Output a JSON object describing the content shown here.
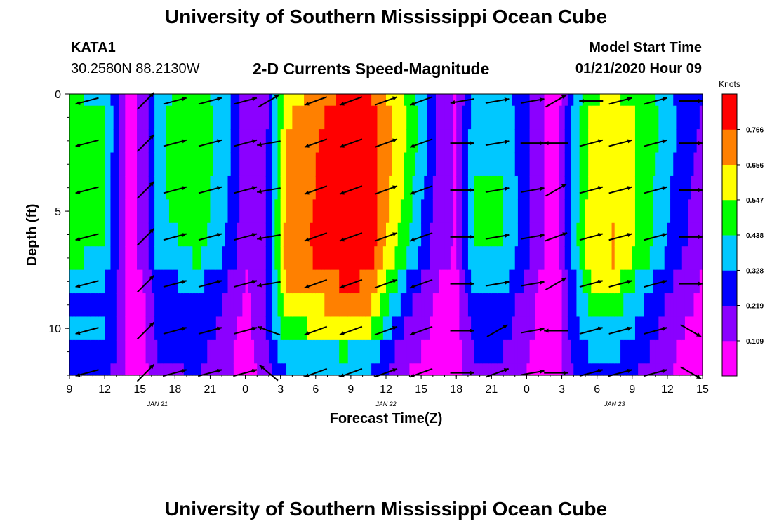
{
  "page": {
    "top_title": "University of Southern Mississippi Ocean Cube",
    "bottom_title": "University of Southern Mississippi Ocean Cube",
    "station_id": "KATA1",
    "station_coords": "30.2580N 88.2130W",
    "product_title": "2-D Currents Speed-Magnitude",
    "model_start_label": "Model Start Time",
    "model_start_value": "01/21/2020 Hour 09"
  },
  "chart_data": {
    "type": "heatmap",
    "title": "2-D Currents Speed-Magnitude",
    "xlabel": "Forecast Time(Z)",
    "ylabel": "Depth (ft)",
    "x_hours_range": [
      0,
      54
    ],
    "ylim": [
      0,
      12
    ],
    "y_inverted": true,
    "x_tick_labels": [
      "9",
      "12",
      "15",
      "18",
      "21",
      "0",
      "3",
      "6",
      "9",
      "12",
      "15",
      "18",
      "21",
      "0",
      "3",
      "6",
      "9",
      "12",
      "15"
    ],
    "y_tick_labels": [
      "0",
      "5",
      "10"
    ],
    "date_labels": [
      {
        "label": "JAN 21",
        "hour": 7.5
      },
      {
        "label": "JAN 22",
        "hour": 27
      },
      {
        "label": "JAN 23",
        "hour": 46.5
      }
    ],
    "colorbar": {
      "label": "Knots",
      "ticks": [
        0.109,
        0.219,
        0.328,
        0.438,
        0.547,
        0.656,
        0.766
      ],
      "range": [
        0.0,
        0.876
      ],
      "colors": [
        "#ff00ff",
        "#8b00ff",
        "#0000ff",
        "#00c8ff",
        "#00ff00",
        "#ffff00",
        "#ff8000",
        "#ff0000"
      ]
    },
    "depth_levels": [
      0,
      0.5,
      1.5,
      2.5,
      3.5,
      4.5,
      5.5,
      6.5,
      7.5,
      8.5,
      9.5,
      10.5,
      11.5,
      12
    ],
    "profile_knots": [
      {
        "hour": 0,
        "speeds": [
          0.45,
          0.48,
          0.48,
          0.48,
          0.48,
          0.48,
          0.48,
          0.45,
          0.35,
          0.32,
          0.36,
          0.3,
          0.27,
          0.24
        ]
      },
      {
        "hour": 3,
        "speeds": [
          0.42,
          0.46,
          0.46,
          0.45,
          0.45,
          0.45,
          0.44,
          0.42,
          0.33,
          0.3,
          0.34,
          0.29,
          0.25,
          0.22
        ]
      },
      {
        "hour": 4,
        "speeds": [
          0.25,
          0.25,
          0.25,
          0.25,
          0.25,
          0.25,
          0.25,
          0.25,
          0.24,
          0.22,
          0.24,
          0.22,
          0.2,
          0.18
        ]
      },
      {
        "hour": 5,
        "speeds": [
          0.04,
          0.04,
          0.04,
          0.04,
          0.04,
          0.04,
          0.04,
          0.04,
          0.05,
          0.06,
          0.07,
          0.07,
          0.07,
          0.07
        ]
      },
      {
        "hour": 6.5,
        "speeds": [
          0.16,
          0.16,
          0.16,
          0.16,
          0.16,
          0.16,
          0.16,
          0.16,
          0.12,
          0.1,
          0.1,
          0.1,
          0.09,
          0.08
        ]
      },
      {
        "hour": 7.5,
        "speeds": [
          0.4,
          0.42,
          0.42,
          0.42,
          0.42,
          0.41,
          0.4,
          0.38,
          0.3,
          0.28,
          0.25,
          0.22,
          0.2,
          0.18
        ]
      },
      {
        "hour": 11,
        "speeds": [
          0.5,
          0.52,
          0.52,
          0.51,
          0.51,
          0.5,
          0.48,
          0.45,
          0.36,
          0.32,
          0.28,
          0.25,
          0.23,
          0.2
        ]
      },
      {
        "hour": 13.5,
        "speeds": [
          0.36,
          0.37,
          0.36,
          0.35,
          0.34,
          0.33,
          0.32,
          0.3,
          0.22,
          0.2,
          0.17,
          0.14,
          0.13,
          0.12
        ]
      },
      {
        "hour": 15,
        "speeds": [
          0.15,
          0.15,
          0.15,
          0.15,
          0.14,
          0.14,
          0.14,
          0.13,
          0.1,
          0.09,
          0.06,
          0.05,
          0.05,
          0.05
        ]
      },
      {
        "hour": 16.5,
        "speeds": [
          0.12,
          0.12,
          0.12,
          0.12,
          0.12,
          0.12,
          0.12,
          0.12,
          0.14,
          0.16,
          0.18,
          0.16,
          0.14,
          0.12
        ]
      },
      {
        "hour": 18.5,
        "speeds": [
          0.6,
          0.64,
          0.66,
          0.67,
          0.68,
          0.69,
          0.7,
          0.7,
          0.66,
          0.58,
          0.52,
          0.42,
          0.34,
          0.28
        ]
      },
      {
        "hour": 23.5,
        "speeds": [
          0.8,
          0.84,
          0.86,
          0.86,
          0.86,
          0.86,
          0.86,
          0.84,
          0.78,
          0.7,
          0.6,
          0.44,
          0.36,
          0.3
        ]
      },
      {
        "hour": 25.5,
        "speeds": [
          0.78,
          0.82,
          0.84,
          0.84,
          0.84,
          0.84,
          0.84,
          0.82,
          0.76,
          0.68,
          0.58,
          0.42,
          0.34,
          0.28
        ]
      },
      {
        "hour": 28.5,
        "speeds": [
          0.55,
          0.58,
          0.58,
          0.56,
          0.54,
          0.52,
          0.5,
          0.46,
          0.36,
          0.28,
          0.22,
          0.15,
          0.12,
          0.1
        ]
      },
      {
        "hour": 30.5,
        "speeds": [
          0.32,
          0.34,
          0.33,
          0.32,
          0.3,
          0.28,
          0.26,
          0.24,
          0.18,
          0.14,
          0.12,
          0.1,
          0.08,
          0.07
        ]
      },
      {
        "hour": 31.5,
        "speeds": [
          0.16,
          0.16,
          0.16,
          0.16,
          0.15,
          0.15,
          0.14,
          0.13,
          0.1,
          0.08,
          0.07,
          0.06,
          0.06,
          0.06
        ]
      },
      {
        "hour": 33,
        "speeds": [
          0.1,
          0.1,
          0.1,
          0.1,
          0.1,
          0.1,
          0.1,
          0.1,
          0.08,
          0.07,
          0.08,
          0.07,
          0.07,
          0.07
        ]
      },
      {
        "hour": 34.5,
        "speeds": [
          0.38,
          0.4,
          0.42,
          0.43,
          0.44,
          0.44,
          0.44,
          0.43,
          0.36,
          0.28,
          0.26,
          0.22,
          0.18,
          0.14
        ]
      },
      {
        "hour": 37,
        "speeds": [
          0.38,
          0.4,
          0.42,
          0.43,
          0.44,
          0.44,
          0.44,
          0.43,
          0.36,
          0.28,
          0.26,
          0.22,
          0.18,
          0.14
        ]
      },
      {
        "hour": 39.5,
        "speeds": [
          0.2,
          0.2,
          0.2,
          0.2,
          0.2,
          0.2,
          0.2,
          0.2,
          0.15,
          0.13,
          0.12,
          0.1,
          0.09,
          0.08
        ]
      },
      {
        "hour": 40.5,
        "speeds": [
          0.1,
          0.1,
          0.1,
          0.1,
          0.1,
          0.1,
          0.1,
          0.1,
          0.08,
          0.07,
          0.06,
          0.06,
          0.06,
          0.06
        ]
      },
      {
        "hour": 41.5,
        "speeds": [
          0.03,
          0.03,
          0.03,
          0.03,
          0.03,
          0.03,
          0.03,
          0.03,
          0.04,
          0.05,
          0.05,
          0.05,
          0.05,
          0.05
        ]
      },
      {
        "hour": 43,
        "speeds": [
          0.34,
          0.36,
          0.37,
          0.38,
          0.38,
          0.38,
          0.38,
          0.36,
          0.3,
          0.28,
          0.28,
          0.25,
          0.22,
          0.2
        ]
      },
      {
        "hour": 44.5,
        "speeds": [
          0.54,
          0.57,
          0.58,
          0.59,
          0.6,
          0.61,
          0.62,
          0.62,
          0.55,
          0.48,
          0.4,
          0.34,
          0.3,
          0.26
        ]
      },
      {
        "hour": 46.5,
        "speeds": [
          0.56,
          0.6,
          0.62,
          0.63,
          0.64,
          0.65,
          0.66,
          0.66,
          0.58,
          0.5,
          0.42,
          0.35,
          0.31,
          0.28
        ]
      },
      {
        "hour": 49,
        "speeds": [
          0.5,
          0.52,
          0.52,
          0.51,
          0.5,
          0.5,
          0.49,
          0.47,
          0.38,
          0.32,
          0.28,
          0.24,
          0.2,
          0.17
        ]
      },
      {
        "hour": 52,
        "speeds": [
          0.3,
          0.32,
          0.32,
          0.3,
          0.28,
          0.27,
          0.26,
          0.24,
          0.18,
          0.14,
          0.12,
          0.1,
          0.09,
          0.08
        ]
      },
      {
        "hour": 54,
        "speeds": [
          0.22,
          0.2,
          0.18,
          0.16,
          0.15,
          0.14,
          0.13,
          0.12,
          0.1,
          0.09,
          0.08,
          0.07,
          0.07,
          0.07
        ]
      }
    ],
    "arrow_depths": [
      0.3,
      2.1,
      4.1,
      6.1,
      8.1,
      10.1,
      11.9
    ],
    "arrow_columns": [
      {
        "hour": 1.5,
        "dirs_deg": [
          195,
          195,
          195,
          195,
          195,
          195,
          195
        ]
      },
      {
        "hour": 6.5,
        "dirs_deg": [
          45,
          45,
          45,
          45,
          45,
          45,
          45
        ]
      },
      {
        "hour": 9,
        "dirs_deg": [
          15,
          15,
          15,
          15,
          15,
          15,
          15
        ]
      },
      {
        "hour": 12,
        "dirs_deg": [
          15,
          15,
          15,
          15,
          15,
          15,
          15
        ]
      },
      {
        "hour": 15,
        "dirs_deg": [
          15,
          15,
          15,
          15,
          15,
          15,
          15
        ]
      },
      {
        "hour": 17,
        "dirs_deg": [
          30,
          190,
          190,
          190,
          190,
          160,
          140
        ]
      },
      {
        "hour": 21,
        "dirs_deg": [
          200,
          200,
          200,
          200,
          200,
          200,
          200
        ]
      },
      {
        "hour": 24,
        "dirs_deg": [
          200,
          200,
          200,
          200,
          200,
          200,
          200
        ]
      },
      {
        "hour": 27,
        "dirs_deg": [
          20,
          20,
          20,
          20,
          20,
          20,
          20
        ]
      },
      {
        "hour": 30,
        "dirs_deg": [
          200,
          200,
          200,
          200,
          200,
          200,
          200
        ]
      },
      {
        "hour": 33.5,
        "dirs_deg": [
          190,
          0,
          0,
          0,
          0,
          0,
          0
        ]
      },
      {
        "hour": 36.5,
        "dirs_deg": [
          10,
          10,
          10,
          10,
          10,
          30,
          20
        ]
      },
      {
        "hour": 39.5,
        "dirs_deg": [
          10,
          0,
          10,
          10,
          10,
          10,
          10
        ]
      },
      {
        "hour": 41.5,
        "dirs_deg": [
          30,
          180,
          30,
          20,
          30,
          180,
          0
        ]
      },
      {
        "hour": 44.5,
        "dirs_deg": [
          180,
          15,
          15,
          15,
          15,
          15,
          15
        ]
      },
      {
        "hour": 47,
        "dirs_deg": [
          15,
          15,
          15,
          15,
          15,
          15,
          15
        ]
      },
      {
        "hour": 50,
        "dirs_deg": [
          15,
          15,
          15,
          15,
          15,
          15,
          15
        ]
      },
      {
        "hour": 53,
        "dirs_deg": [
          0,
          0,
          0,
          0,
          0,
          330,
          330
        ]
      }
    ]
  }
}
